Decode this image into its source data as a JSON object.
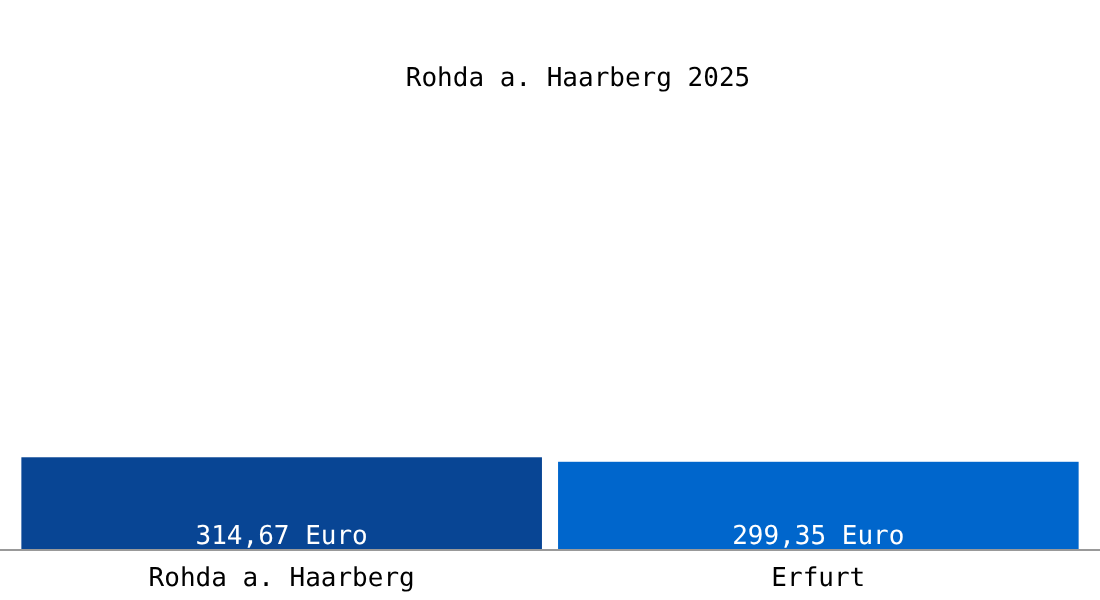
{
  "chart_data": {
    "type": "bar",
    "title": "Rohda a. Haarberg 2025",
    "categories": [
      "Rohda a. Haarberg",
      "Erfurt"
    ],
    "values": [
      314.67,
      299.35
    ],
    "colors": [
      "#084594",
      "#0066cc"
    ],
    "value_labels": [
      "314,67 Euro",
      "299,35 Euro"
    ]
  }
}
